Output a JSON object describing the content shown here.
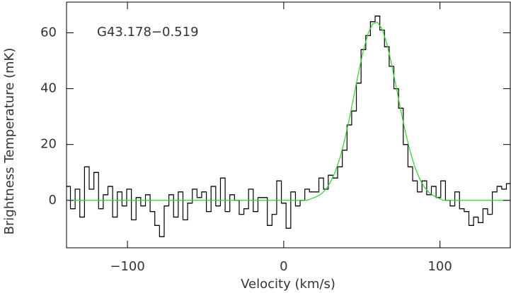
{
  "chart_data": {
    "type": "step",
    "xlabel": "Velocity (km/s)",
    "ylabel": "Brightness Temperature (mK)",
    "annotation": "G43.178−0.519",
    "x": [
      -138,
      -135,
      -132,
      -129,
      -126,
      -123,
      -120,
      -117,
      -114,
      -111,
      -108,
      -105,
      -102,
      -99,
      -96,
      -93,
      -90,
      -87,
      -84,
      -81,
      -78,
      -75,
      -72,
      -69,
      -66,
      -63,
      -60,
      -57,
      -54,
      -51,
      -48,
      -45,
      -42,
      -39,
      -36,
      -33,
      -30,
      -27,
      -24,
      -21,
      -18,
      -15,
      -12,
      -9,
      -6,
      -3,
      0,
      3,
      6,
      9,
      12,
      15,
      18,
      21,
      24,
      27,
      30,
      33,
      36,
      39,
      42,
      45,
      48,
      51,
      54,
      57,
      60,
      63,
      66,
      69,
      72,
      75,
      78,
      81,
      84,
      87,
      90,
      93,
      96,
      99,
      102,
      105,
      108,
      111,
      114,
      117,
      120,
      123,
      126,
      129,
      132,
      135,
      138,
      141,
      144
    ],
    "series": [
      {
        "color": "#000000",
        "style": "step",
        "values": [
          5,
          -3,
          4,
          -6,
          12,
          4,
          10,
          -3,
          2,
          5,
          -6,
          3,
          -2,
          4,
          -7,
          1,
          -2,
          2,
          -4,
          -9,
          -13,
          -2,
          2,
          -6,
          3,
          -7,
          -1,
          4,
          1,
          3,
          -4,
          5,
          -2,
          8,
          -4,
          2,
          0,
          -5,
          -3,
          4,
          -4,
          1,
          1,
          -9,
          -5,
          7,
          -1,
          -10,
          3,
          -2,
          0,
          4,
          3,
          3,
          8,
          4,
          9,
          8,
          12,
          18,
          27,
          32,
          42,
          54,
          59,
          64,
          66,
          61,
          55,
          48,
          40,
          33,
          20,
          12,
          7,
          3,
          7,
          2,
          5,
          1,
          7,
          0,
          -2,
          3,
          -3,
          -4,
          -9,
          -6,
          -8,
          -3,
          -5,
          3,
          5,
          4,
          6
        ]
      },
      {
        "color": "#22dd22",
        "style": "line",
        "values": [
          0,
          0,
          0,
          0,
          0,
          0,
          0,
          0,
          0,
          0,
          0,
          0,
          0,
          0,
          0,
          0,
          0,
          0,
          0,
          0,
          0,
          0,
          0,
          0,
          0,
          0,
          0,
          0,
          0,
          0,
          0,
          0,
          0,
          0,
          0,
          0,
          0,
          0,
          0,
          0,
          0,
          0,
          0,
          0,
          0,
          0,
          0,
          0,
          0,
          0,
          0,
          0,
          0.7,
          1.3,
          2.3,
          4.0,
          6.6,
          10.3,
          15.3,
          21.7,
          29.3,
          37.7,
          46.2,
          53.8,
          59.8,
          63.3,
          63.8,
          61.3,
          56.1,
          48.8,
          40.5,
          32.0,
          24.1,
          17.3,
          11.8,
          7.7,
          4.7,
          2.8,
          1.6,
          0.8,
          0,
          0,
          0,
          0,
          0,
          0,
          0,
          0,
          0,
          0,
          0,
          0,
          0,
          0,
          0
        ]
      }
    ],
    "xlim": [
      -139,
      145
    ],
    "ylim": [
      -17,
      71
    ],
    "xticks": [
      {
        "value": -100,
        "label": "−100"
      },
      0,
      100
    ],
    "yticks": [
      0,
      20,
      40,
      60
    ]
  }
}
